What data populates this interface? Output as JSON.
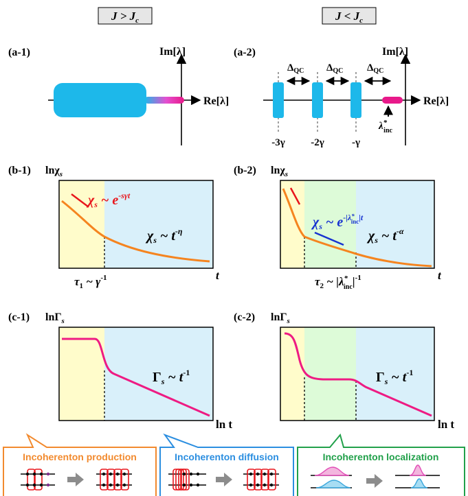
{
  "column_headers": {
    "left": "J > J",
    "left_sub": "c",
    "right": "J < J",
    "right_sub": "c"
  },
  "panels": {
    "a1": "(a-1)",
    "a2": "(a-2)",
    "b1": "(b-1)",
    "b2": "(b-2)",
    "c1": "(c-1)",
    "c2": "(c-2)"
  },
  "axes": {
    "im": "Im[λ]",
    "re": "Re[λ]",
    "ln_chi": "lnχ",
    "ln_chi_sub": "s",
    "ln_gamma": "lnΓ",
    "ln_gamma_sub": "s",
    "t": "t",
    "ln_t": "ln t"
  },
  "spectrum": {
    "delta": "Δ",
    "delta_sub": "QC",
    "ticks": [
      "-3γ",
      "-2γ",
      "-γ"
    ],
    "lambda_inc": "λ",
    "lambda_sup": "*",
    "lambda_sub": "inc"
  },
  "formulas": {
    "b1_red": "χs ~ e-sγt",
    "b1_orange": "χs ~ t-η",
    "b2_blue": "χs ~ e-|λ*inc|t",
    "b2_orange": "χs ~ t-α",
    "c_pink": "Γs ~ t-1"
  },
  "timescales": {
    "tau1": "τ1 ~ γ-1",
    "tau2": "τ2 ~ |λ*inc|-1"
  },
  "legend": {
    "production": "Incoherenton production",
    "diffusion": "Incoherenton diffusion",
    "localization": "Incoherenton localization"
  },
  "colors": {
    "yellow_region": "#FFFCCB",
    "green_region": "#DDFBD8",
    "blue_region": "#D9F0FA",
    "orange": "#F5841F",
    "pink": "#EE1B83",
    "red": "#E8151B",
    "blue": "#1733D0",
    "cyan_block": "#1DB8EA",
    "legend_orange": "#F28A2E",
    "legend_blue": "#2B8EE0",
    "legend_green": "#21A04A"
  }
}
